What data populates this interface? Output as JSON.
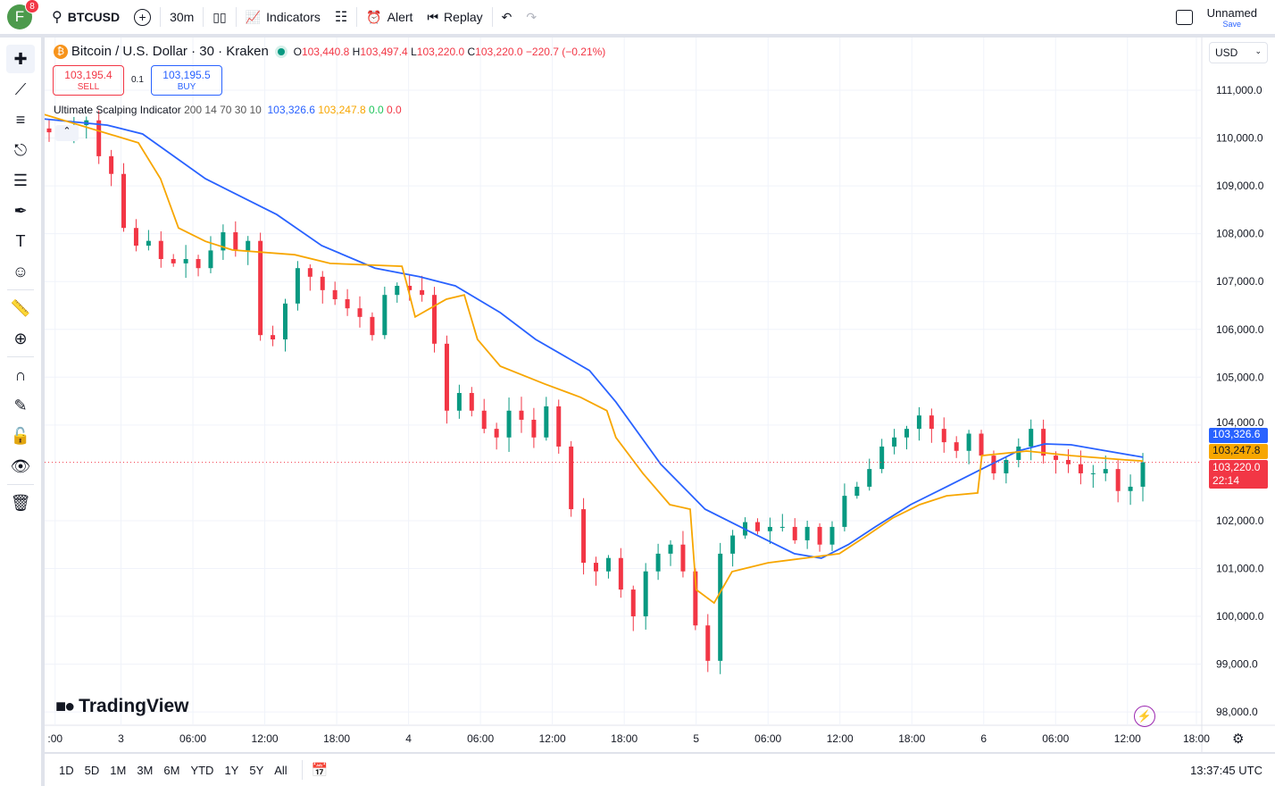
{
  "topbar": {
    "avatar": "F",
    "notifications": "8",
    "symbol": "BTCUSD",
    "interval": "30m",
    "indicators": "Indicators",
    "alert": "Alert",
    "replay": "Replay",
    "layout_name": "Unnamed",
    "save": "Save"
  },
  "legend": {
    "title": "Bitcoin / U.S. Dollar · 30 · Kraken",
    "o_label": "O",
    "o": "103,440.8",
    "h_label": "H",
    "h": "103,497.4",
    "l_label": "L",
    "l": "103,220.0",
    "c_label": "C",
    "c": "103,220.0",
    "change": "−220.7 (−0.21%)",
    "sell_price": "103,195.4",
    "sell": "SELL",
    "spread": "0.1",
    "buy_price": "103,195.5",
    "buy": "BUY",
    "indicator_name": "Ultimate Scalping Indicator",
    "indicator_params": "200 14 70 30 10",
    "ind_v1": "103,326.6",
    "ind_v2": "103,247.8",
    "ind_v3": "0.0",
    "ind_v4": "0.0"
  },
  "currency": "USD",
  "colors": {
    "up": "#089981",
    "down": "#f23645",
    "blue": "#2962ff",
    "orange": "#f7a600"
  },
  "price_labels": {
    "blue": "103,326.6",
    "orange": "103,247.8",
    "last": "103,220.0",
    "countdown": "22:14"
  },
  "watermark": "TradingView",
  "bottombar": {
    "ranges": [
      "1D",
      "5D",
      "1M",
      "3M",
      "6M",
      "YTD",
      "1Y",
      "5Y",
      "All"
    ],
    "clock": "13:37:45 UTC"
  },
  "chart_data": {
    "type": "candlestick",
    "ylim": [
      97800,
      111800
    ],
    "y_ticks": [
      111000,
      110000,
      109000,
      108000,
      107000,
      106000,
      105000,
      104000,
      102000,
      101000,
      100000,
      99000,
      98000
    ],
    "y_tick_labels": [
      "111,000.0",
      "110,000.0",
      "109,000.0",
      "108,000.0",
      "107,000.0",
      "106,000.0",
      "105,000.0",
      "104,000.0",
      "102,000.0",
      "101,000.0",
      "100,000.0",
      "99,000.0",
      "98,000.0"
    ],
    "x_tick_labels": [
      ":00",
      "3",
      "06:00",
      "12:00",
      "18:00",
      "4",
      "06:00",
      "12:00",
      "18:00",
      "5",
      "06:00",
      "12:00",
      "18:00",
      "6",
      "06:00",
      "12:00",
      "18:00"
    ],
    "x_tick_bars": [
      1,
      12,
      24,
      36,
      48,
      60,
      72,
      84,
      96,
      108,
      120,
      132,
      144,
      156,
      168,
      180,
      191.5
    ],
    "last_price": 103220,
    "closes": [
      110120,
      110080,
      110270,
      110370,
      109620,
      109250,
      108120,
      107750,
      107850,
      107470,
      107380,
      107470,
      107280,
      107650,
      108030,
      107650,
      107850,
      105880,
      105790,
      106540,
      107280,
      107100,
      106820,
      106630,
      106440,
      106260,
      105880,
      106720,
      106910,
      106820,
      106720,
      105700,
      104300,
      104670,
      104300,
      103920,
      103740,
      104300,
      104110,
      103740,
      104390,
      103550,
      102240,
      101120,
      100940,
      101220,
      100560,
      100000,
      100940,
      101310,
      101500,
      100940,
      99810,
      99070,
      101310,
      101690,
      101970,
      101780,
      101870,
      101870,
      101590,
      101870,
      101500,
      101870,
      102520,
      102710,
      103080,
      103550,
      103740,
      103920,
      104200,
      103920,
      103640,
      103460,
      103820,
      103360,
      102990,
      103270,
      103550,
      103920,
      103360,
      103270,
      103180,
      102990,
      102990,
      103080,
      102620,
      102710,
      103220
    ],
    "series": [
      {
        "name": "Ultimate Scalping Indicator line 1",
        "color": "blue",
        "points": [
          [
            -1,
            110400
          ],
          [
            9.7,
            110270
          ],
          [
            15.6,
            110085
          ],
          [
            26.1,
            109150
          ],
          [
            38,
            108400
          ],
          [
            45.5,
            107750
          ],
          [
            54.4,
            107280
          ],
          [
            61.8,
            107100
          ],
          [
            67.8,
            106910
          ],
          [
            75.3,
            106350
          ],
          [
            81.2,
            105790
          ],
          [
            90.2,
            105140
          ],
          [
            94.6,
            104480
          ],
          [
            102.1,
            103180
          ],
          [
            109.5,
            102240
          ],
          [
            118.4,
            101680
          ],
          [
            124.4,
            101310
          ],
          [
            128.9,
            101215
          ],
          [
            133.4,
            101500
          ],
          [
            137.9,
            101870
          ],
          [
            143.8,
            102335
          ],
          [
            149.8,
            102710
          ],
          [
            155.7,
            103080
          ],
          [
            161.7,
            103456
          ],
          [
            166.2,
            103605
          ],
          [
            170.6,
            103586
          ],
          [
            176.6,
            103456
          ],
          [
            182.6,
            103327
          ]
        ]
      },
      {
        "name": "Ultimate Scalping Indicator line 2",
        "color": "orange",
        "points": [
          [
            -1,
            110500
          ],
          [
            14.9,
            109900
          ],
          [
            18.6,
            109150
          ],
          [
            21.6,
            108120
          ],
          [
            26.1,
            107840
          ],
          [
            30.6,
            107660
          ],
          [
            41,
            107560
          ],
          [
            46.9,
            107380
          ],
          [
            58.9,
            107320
          ],
          [
            59.6,
            107000
          ],
          [
            61.1,
            106260
          ],
          [
            66.3,
            106630
          ],
          [
            69.3,
            106720
          ],
          [
            71.5,
            105790
          ],
          [
            75.3,
            105230
          ],
          [
            82.7,
            104860
          ],
          [
            88.7,
            104580
          ],
          [
            93.1,
            104300
          ],
          [
            94.6,
            103740
          ],
          [
            99.1,
            102990
          ],
          [
            103.6,
            102335
          ],
          [
            107,
            102240
          ],
          [
            108,
            100560
          ],
          [
            111,
            100280
          ],
          [
            114,
            100935
          ],
          [
            120,
            101120
          ],
          [
            126,
            101215
          ],
          [
            131.9,
            101310
          ],
          [
            136.4,
            101680
          ],
          [
            140.8,
            102055
          ],
          [
            145.3,
            102335
          ],
          [
            149.8,
            102520
          ],
          [
            155,
            102580
          ],
          [
            155.7,
            103360
          ],
          [
            163.2,
            103456
          ],
          [
            170.6,
            103360
          ],
          [
            179.6,
            103270
          ],
          [
            182.6,
            103248
          ]
        ]
      }
    ]
  }
}
